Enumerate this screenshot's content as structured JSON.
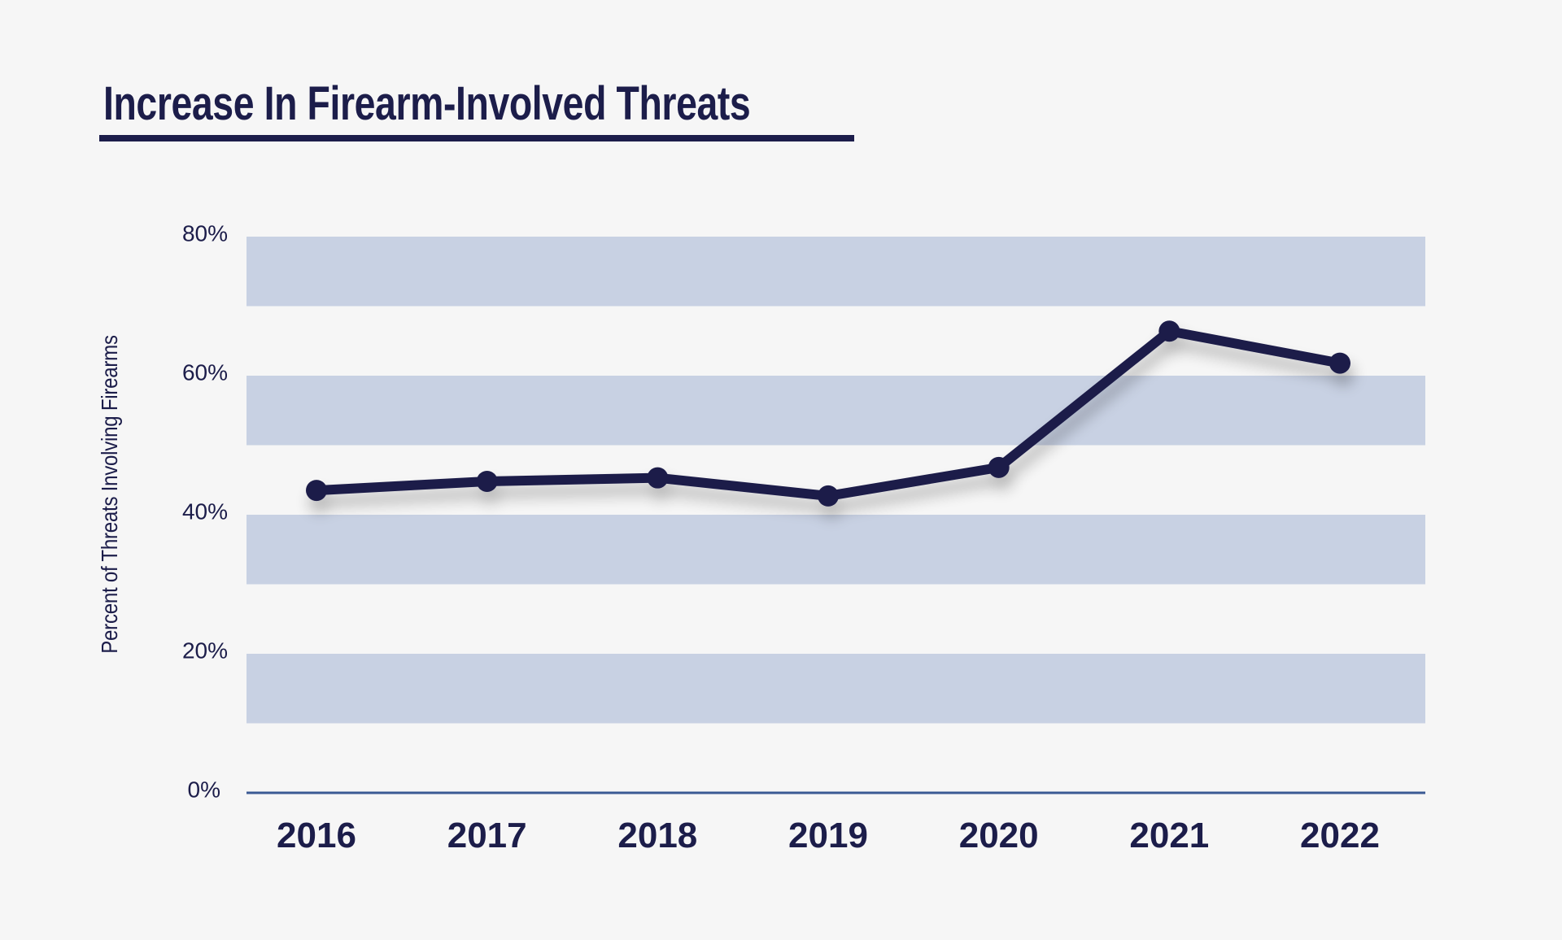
{
  "chart_data": {
    "type": "line",
    "title": "Increase In Firearm-Involved Threats",
    "xlabel": "",
    "ylabel": "Percent of Threats Involving Firearms",
    "categories": [
      "2016",
      "2017",
      "2018",
      "2019",
      "2020",
      "2021",
      "2022"
    ],
    "series": [
      {
        "name": "Percent of Threats Involving Firearms",
        "values": [
          43.5,
          44.8,
          45.3,
          42.7,
          46.8,
          66.4,
          61.8
        ]
      }
    ],
    "ylim": [
      0,
      80
    ],
    "yticks": [
      0,
      20,
      40,
      60,
      80
    ],
    "ytick_labels": [
      "0%",
      "20%",
      "40%",
      "60%",
      "80%"
    ],
    "bands": [
      [
        10,
        20
      ],
      [
        30,
        40
      ],
      [
        50,
        60
      ],
      [
        70,
        80
      ]
    ],
    "grid": "alternating horizontal bands",
    "legend": "none",
    "colors": {
      "line": "#1c1d4a",
      "band": "#c8d1e3",
      "axis": "#3b5a94",
      "background": "#f6f6f6"
    }
  }
}
